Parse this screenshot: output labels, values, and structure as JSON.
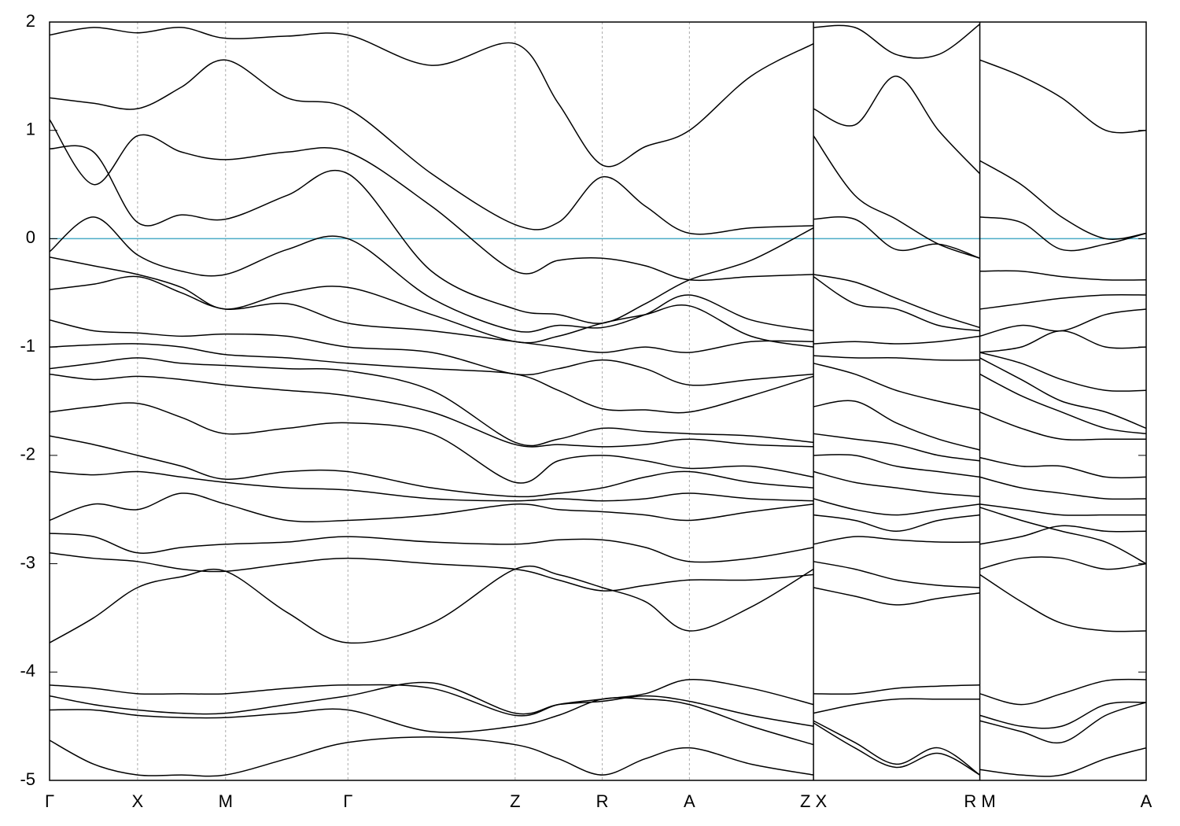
{
  "chart_data": {
    "type": "line",
    "xlim": [
      0,
      12.46
    ],
    "ylim": [
      -5,
      2
    ],
    "yticks": [
      -5,
      -4,
      -3,
      -2,
      -1,
      0,
      1,
      2
    ],
    "xticks": [
      {
        "value": 0,
        "label": "Γ"
      },
      {
        "value": 1.0,
        "label": "X"
      },
      {
        "value": 2.0,
        "label": "M"
      },
      {
        "value": 3.39,
        "label": "Γ"
      },
      {
        "value": 5.29,
        "label": "Z"
      },
      {
        "value": 6.28,
        "label": "R"
      },
      {
        "value": 7.27,
        "label": "A"
      },
      {
        "value": 8.68,
        "label": "Z X"
      },
      {
        "value": 10.57,
        "label": "R M"
      },
      {
        "value": 12.46,
        "label": "A"
      }
    ],
    "grid": true,
    "panel_breaks": [
      8.68,
      10.57
    ],
    "hline": {
      "value": 0,
      "color": "#4bacc6"
    },
    "x": [
      0,
      0.5,
      1.0,
      1.5,
      2.0,
      2.7,
      3.39,
      4.34,
      5.29,
      5.78,
      6.28,
      6.77,
      7.27,
      7.97,
      8.68,
      8.68,
      8.68,
      9.15,
      9.62,
      10.1,
      10.57,
      10.57,
      10.57,
      11.04,
      11.5,
      12.0,
      12.46
    ],
    "series": [
      {
        "color": "#000000",
        "values": [
          1.88,
          1.95,
          1.9,
          1.95,
          1.85,
          1.87,
          1.88,
          1.6,
          1.8,
          1.25,
          0.68,
          0.85,
          1.0,
          1.5,
          1.8,
          null,
          1.95,
          1.95,
          1.7,
          1.7,
          1.98,
          null,
          1.65,
          1.5,
          1.3,
          1.0,
          1.0
        ]
      },
      {
        "color": "#000000",
        "values": [
          1.3,
          1.25,
          1.2,
          1.4,
          1.65,
          1.3,
          1.2,
          0.6,
          0.13,
          0.15,
          0.57,
          0.3,
          0.05,
          0.1,
          0.12,
          null,
          1.2,
          1.05,
          1.5,
          1.0,
          0.6,
          null,
          0.72,
          0.5,
          0.2,
          0.0,
          0.05
        ]
      },
      {
        "color": "#000000",
        "values": [
          1.1,
          0.5,
          0.95,
          0.8,
          0.73,
          0.8,
          0.8,
          0.3,
          -0.3,
          -0.2,
          -0.18,
          -0.25,
          -0.38,
          -0.35,
          -0.33,
          null,
          0.95,
          0.4,
          0.18,
          -0.05,
          -0.18,
          null,
          0.2,
          0.15,
          -0.1,
          -0.05,
          0.05
        ]
      },
      {
        "color": "#000000",
        "values": [
          0.83,
          0.8,
          0.15,
          0.22,
          0.18,
          0.4,
          0.6,
          -0.3,
          -0.65,
          -0.7,
          -0.78,
          -0.6,
          -0.38,
          -0.2,
          0.1,
          null,
          0.18,
          0.18,
          -0.1,
          -0.05,
          -0.18,
          null,
          -0.3,
          -0.3,
          -0.35,
          -0.38,
          -0.38
        ]
      },
      {
        "color": "#000000",
        "values": [
          -0.12,
          0.2,
          -0.15,
          -0.3,
          -0.33,
          -0.1,
          0.0,
          -0.55,
          -0.85,
          -0.8,
          -0.82,
          -0.7,
          -0.52,
          -0.75,
          -0.85,
          null,
          -0.33,
          -0.4,
          -0.55,
          -0.7,
          -0.82,
          null,
          -0.65,
          -0.6,
          -0.55,
          -0.52,
          -0.52
        ]
      },
      {
        "color": "#000000",
        "values": [
          -0.17,
          -0.25,
          -0.33,
          -0.45,
          -0.65,
          -0.5,
          -0.45,
          -0.7,
          -0.95,
          -0.9,
          -0.78,
          -0.7,
          -0.62,
          -0.9,
          -1.0,
          null,
          -0.35,
          -0.6,
          -0.65,
          -0.8,
          -0.85,
          null,
          -0.9,
          -0.8,
          -0.85,
          -0.7,
          -0.65
        ]
      },
      {
        "color": "#000000",
        "values": [
          -0.47,
          -0.42,
          -0.35,
          -0.5,
          -0.65,
          -0.6,
          -0.78,
          -0.85,
          -0.95,
          -1.0,
          -1.05,
          -1.0,
          -1.05,
          -0.95,
          -0.95,
          null,
          -0.97,
          -0.95,
          -0.97,
          -0.95,
          -0.9,
          null,
          -1.05,
          -1.0,
          -0.85,
          -1.0,
          -1.0
        ]
      },
      {
        "color": "#000000",
        "values": [
          -0.75,
          -0.85,
          -0.87,
          -0.9,
          -0.88,
          -0.9,
          -1.0,
          -1.05,
          -1.25,
          -1.2,
          -1.12,
          -1.2,
          -1.35,
          -1.3,
          -1.25,
          null,
          -1.08,
          -1.1,
          -1.1,
          -1.12,
          -1.12,
          null,
          -1.05,
          -1.15,
          -1.3,
          -1.4,
          -1.4
        ]
      },
      {
        "color": "#000000",
        "values": [
          -1.0,
          -0.98,
          -0.97,
          -1.0,
          -1.07,
          -1.1,
          -1.15,
          -1.2,
          -1.25,
          -1.4,
          -1.57,
          -1.58,
          -1.6,
          -1.45,
          -1.27,
          null,
          -1.15,
          -1.25,
          -1.4,
          -1.5,
          -1.58,
          null,
          -1.1,
          -1.3,
          -1.5,
          -1.6,
          -1.75
        ]
      },
      {
        "color": "#000000",
        "values": [
          -1.2,
          -1.15,
          -1.1,
          -1.15,
          -1.17,
          -1.2,
          -1.22,
          -1.4,
          -1.88,
          -1.85,
          -1.75,
          -1.78,
          -1.8,
          -1.82,
          -1.88,
          null,
          -1.55,
          -1.5,
          -1.7,
          -1.85,
          -1.95,
          null,
          -1.25,
          -1.45,
          -1.6,
          -1.75,
          -1.8
        ]
      },
      {
        "color": "#000000",
        "values": [
          -1.25,
          -1.3,
          -1.27,
          -1.3,
          -1.35,
          -1.4,
          -1.45,
          -1.6,
          -1.9,
          -1.9,
          -1.92,
          -1.9,
          -1.85,
          -1.9,
          -1.92,
          null,
          -1.8,
          -1.85,
          -1.9,
          -2.0,
          -2.05,
          null,
          -1.6,
          -1.75,
          -1.85,
          -1.85,
          -1.85
        ]
      },
      {
        "color": "#000000",
        "values": [
          -1.6,
          -1.55,
          -1.52,
          -1.65,
          -1.8,
          -1.75,
          -1.7,
          -1.8,
          -2.25,
          -2.05,
          -2.0,
          -2.05,
          -2.12,
          -2.1,
          -2.2,
          null,
          -2.0,
          -2.0,
          -2.1,
          -2.15,
          -2.2,
          null,
          -2.02,
          -2.1,
          -2.1,
          -2.2,
          -2.2
        ]
      },
      {
        "color": "#000000",
        "values": [
          -1.82,
          -1.9,
          -2.0,
          -2.1,
          -2.22,
          -2.15,
          -2.15,
          -2.3,
          -2.38,
          -2.35,
          -2.3,
          -2.2,
          -2.15,
          -2.25,
          -2.3,
          null,
          -2.15,
          -2.25,
          -2.3,
          -2.35,
          -2.38,
          null,
          -2.2,
          -2.3,
          -2.35,
          -2.4,
          -2.4
        ]
      },
      {
        "color": "#000000",
        "values": [
          -2.15,
          -2.18,
          -2.15,
          -2.2,
          -2.25,
          -2.3,
          -2.32,
          -2.4,
          -2.42,
          -2.4,
          -2.42,
          -2.4,
          -2.35,
          -2.4,
          -2.42,
          null,
          -2.4,
          -2.5,
          -2.55,
          -2.5,
          -2.45,
          null,
          -2.45,
          -2.5,
          -2.55,
          -2.55,
          -2.55
        ]
      },
      {
        "color": "#000000",
        "values": [
          -2.6,
          -2.45,
          -2.5,
          -2.35,
          -2.45,
          -2.6,
          -2.6,
          -2.55,
          -2.45,
          -2.5,
          -2.52,
          -2.55,
          -2.6,
          -2.52,
          -2.45,
          null,
          -2.55,
          -2.6,
          -2.7,
          -2.6,
          -2.55,
          null,
          -2.48,
          -2.6,
          -2.7,
          -2.8,
          -3.0
        ]
      },
      {
        "color": "#000000",
        "values": [
          -2.72,
          -2.75,
          -2.9,
          -2.85,
          -2.82,
          -2.8,
          -2.75,
          -2.8,
          -2.82,
          -2.78,
          -2.78,
          -2.85,
          -2.98,
          -2.95,
          -2.85,
          null,
          -2.82,
          -2.75,
          -2.78,
          -2.8,
          -2.8,
          null,
          -2.82,
          -2.75,
          -2.65,
          -2.7,
          -2.7
        ]
      },
      {
        "color": "#000000",
        "values": [
          -2.9,
          -2.95,
          -2.98,
          -3.05,
          -3.07,
          -3.0,
          -2.95,
          -3.0,
          -3.05,
          -3.15,
          -3.25,
          -3.2,
          -3.15,
          -3.15,
          -3.1,
          null,
          -2.98,
          -3.05,
          -3.15,
          -3.2,
          -3.22,
          null,
          -3.05,
          -2.95,
          -2.95,
          -3.05,
          -3.0
        ]
      },
      {
        "color": "#000000",
        "values": [
          -3.73,
          -3.5,
          -3.22,
          -3.12,
          -3.07,
          -3.45,
          -3.73,
          -3.55,
          -3.05,
          -3.1,
          -3.22,
          -3.35,
          -3.62,
          -3.4,
          -3.05,
          null,
          -3.22,
          -3.3,
          -3.38,
          -3.32,
          -3.27,
          null,
          -3.1,
          -3.35,
          -3.55,
          -3.62,
          -3.62
        ]
      },
      {
        "color": "#000000",
        "values": [
          -4.12,
          -4.15,
          -4.2,
          -4.2,
          -4.2,
          -4.15,
          -4.12,
          -4.15,
          -4.4,
          -4.3,
          -4.25,
          -4.2,
          -4.07,
          -4.15,
          -4.3,
          null,
          -4.2,
          -4.2,
          -4.15,
          -4.13,
          -4.12,
          null,
          -4.2,
          -4.3,
          -4.2,
          -4.08,
          -4.07
        ]
      },
      {
        "color": "#000000",
        "values": [
          -4.22,
          -4.3,
          -4.35,
          -4.38,
          -4.38,
          -4.3,
          -4.22,
          -4.1,
          -4.38,
          -4.3,
          -4.27,
          -4.22,
          -4.27,
          -4.4,
          -4.5,
          null,
          -4.38,
          -4.3,
          -4.25,
          -4.25,
          -4.25,
          null,
          -4.4,
          -4.5,
          -4.5,
          -4.3,
          -4.28
        ]
      },
      {
        "color": "#000000",
        "values": [
          -4.35,
          -4.35,
          -4.4,
          -4.42,
          -4.42,
          -4.38,
          -4.35,
          -4.55,
          -4.5,
          -4.4,
          -4.25,
          -4.25,
          -4.3,
          -4.5,
          -4.67,
          null,
          -4.45,
          -4.65,
          -4.85,
          -4.7,
          -4.95,
          null,
          -4.45,
          -4.55,
          -4.65,
          -4.4,
          -4.28
        ]
      },
      {
        "color": "#000000",
        "values": [
          -4.63,
          -4.85,
          -4.95,
          -4.95,
          -4.95,
          -4.8,
          -4.65,
          -4.6,
          -4.67,
          -4.8,
          -4.95,
          -4.8,
          -4.7,
          -4.85,
          -4.95,
          null,
          -4.47,
          -4.7,
          -4.88,
          -4.75,
          -4.95,
          null,
          -4.9,
          -4.95,
          -4.95,
          -4.8,
          -4.7
        ]
      }
    ]
  }
}
